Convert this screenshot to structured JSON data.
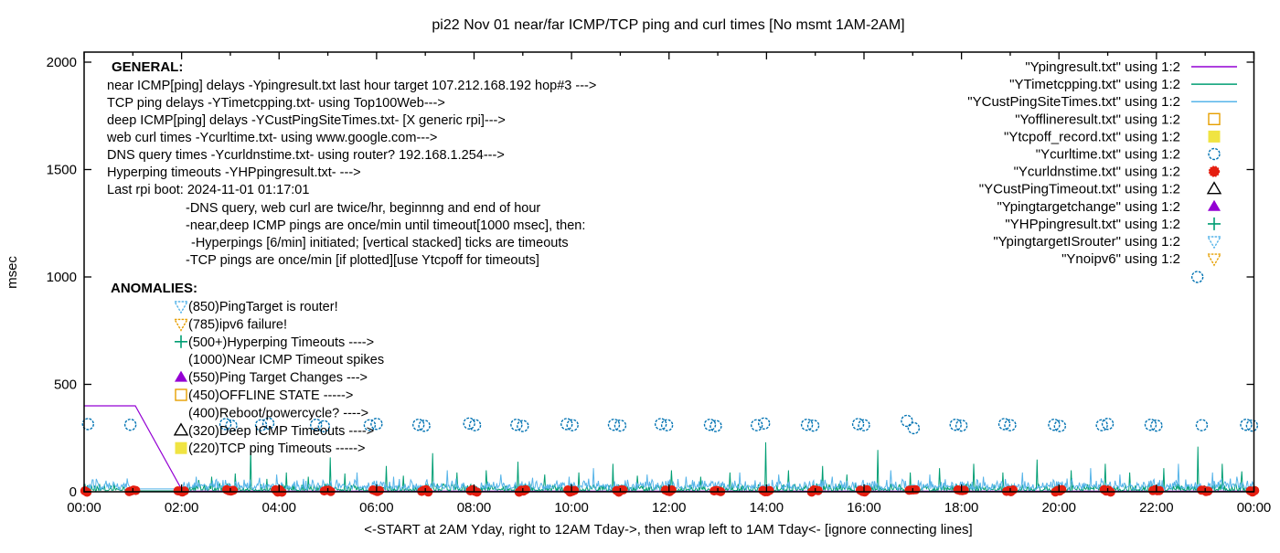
{
  "title": "pi22 Nov 01  near/far ICMP/TCP ping and curl times [No msmt 1AM-2AM]",
  "y_axis": {
    "label": "msec",
    "ticks": [
      0,
      500,
      1000,
      1500,
      2000
    ],
    "range": [
      0,
      2050
    ]
  },
  "x_axis": {
    "label": "<-START at 2AM Yday, right to 12AM Tday->, then wrap left to 1AM Tday<- [ignore connecting lines]",
    "tick_labels": [
      "00:00",
      "02:00",
      "04:00",
      "06:00",
      "08:00",
      "10:00",
      "12:00",
      "14:00",
      "16:00",
      "18:00",
      "20:00",
      "22:00",
      "00:00"
    ],
    "hours_span": 24,
    "major_tick_every_hours": 2,
    "minor_tick_every_hours": 1
  },
  "legend": {
    "items": [
      {
        "label": "\"Ypingresult.txt\" using 1:2",
        "sample": "line",
        "color": "#9400D3"
      },
      {
        "label": "\"YTimetcpping.txt\" using 1:2",
        "sample": "line",
        "color": "#009E73"
      },
      {
        "label": "\"YCustPingSiteTimes.txt\" using 1:2",
        "sample": "line",
        "color": "#56B4E9"
      },
      {
        "label": "\"Yofflineresult.txt\" using 1:2",
        "sample": "square-open",
        "color": "#E69F00"
      },
      {
        "label": "\"Ytcpoff_record.txt\" using 1:2",
        "sample": "square-filled",
        "color": "#F0E442"
      },
      {
        "label": "\"Ycurltime.txt\" using 1:2",
        "sample": "circle-open",
        "color": "#0072B2"
      },
      {
        "label": "\"Ycurldnstime.txt\" using 1:2",
        "sample": "circle-filled",
        "color": "#E51E10"
      },
      {
        "label": "\"YCustPingTimeout.txt\" using 1:2",
        "sample": "triangle-up-open",
        "color": "#000000"
      },
      {
        "label": "\"Ypingtargetchange\" using 1:2",
        "sample": "triangle-up-filled",
        "color": "#9400D3"
      },
      {
        "label": "\"YHPpingresult.txt\" using 1:2",
        "sample": "plus",
        "color": "#009E73"
      },
      {
        "label": "\"YpingtargetISrouter\" using 1:2",
        "sample": "triangle-down-open",
        "color": "#56B4E9"
      },
      {
        "label": "\"Ynoipv6\" using 1:2",
        "sample": "triangle-down-open",
        "color": "#E69F00"
      }
    ]
  },
  "annotations": {
    "general": {
      "heading": "GENERAL:",
      "lines": [
        "near ICMP[ping] delays -Ypingresult.txt last hour target 107.212.168.192 hop#3 --->",
        "TCP ping delays -YTimetcpping.txt- using Top100Web--->",
        "deep ICMP[ping] delays -YCustPingSiteTimes.txt- [X generic rpi]--->",
        "web curl times -Ycurltime.txt- using www.google.com--->",
        "DNS query times -Ycurldnstime.txt- using router? 192.168.1.254--->",
        "Hyperping timeouts -YHPpingresult.txt- --->",
        "Last rpi boot: 2024-11-01 01:17:01"
      ],
      "sub_lines": [
        "-DNS query, web curl are twice/hr, beginnng and end of hour",
        "-near,deep ICMP pings are once/min until timeout[1000 msec], then:",
        " -Hyperpings [6/min] initiated; [vertical stacked] ticks are timeouts",
        "-TCP pings are once/min [if plotted][use Ytcpoff for timeouts]"
      ]
    },
    "anomalies": {
      "heading": "ANOMALIES:",
      "items": [
        {
          "marker": "triangle-down-open",
          "color": "#56B4E9",
          "text": "(850)PingTarget is router!"
        },
        {
          "marker": "triangle-down-open",
          "color": "#E69F00",
          "text": "(785)ipv6 failure!"
        },
        {
          "marker": "plus",
          "color": "#009E73",
          "text": "(500+)Hyperping Timeouts ---->"
        },
        {
          "marker": "none",
          "color": "",
          "text": "(1000)Near ICMP Timeout spikes"
        },
        {
          "marker": "triangle-up-filled",
          "color": "#9400D3",
          "text": "(550)Ping Target Changes --->"
        },
        {
          "marker": "square-open",
          "color": "#E69F00",
          "text": "(450)OFFLINE STATE ----->"
        },
        {
          "marker": "none",
          "color": "",
          "text": "(400)Reboot/powercycle? ---->"
        },
        {
          "marker": "triangle-up-open",
          "color": "#000000",
          "text": "(320)Deep ICMP Timeouts ---->"
        },
        {
          "marker": "square-filled",
          "color": "#F0E442",
          "text": "(220)TCP ping Timeouts ----->"
        }
      ]
    }
  },
  "chart_data": {
    "type": "line",
    "x_unit": "hours_0_to_24",
    "ylabel": "msec",
    "ylim": [
      0,
      2050
    ],
    "grid": false,
    "legend_position": "top-right-inside",
    "series": [
      {
        "name": "Ypingresult.txt",
        "style": "line",
        "color": "#9400D3",
        "points": [
          [
            0,
            400
          ],
          [
            1.05,
            400
          ],
          [
            2.02,
            3
          ],
          [
            24,
            3
          ]
        ]
      },
      {
        "name": "YTimetcpping.txt",
        "style": "noisy-line",
        "color": "#009E73",
        "baseline_msec": 7,
        "noise_amp_msec": 32,
        "quiet_hours": [
          0.95,
          2.02
        ],
        "spikes": [
          [
            2.35,
            55
          ],
          [
            2.62,
            70
          ],
          [
            3.1,
            85
          ],
          [
            3.42,
            205
          ],
          [
            3.75,
            60
          ],
          [
            4.15,
            90
          ],
          [
            4.6,
            70
          ],
          [
            5.05,
            160
          ],
          [
            5.35,
            85
          ],
          [
            6.2,
            120
          ],
          [
            6.55,
            75
          ],
          [
            7.15,
            180
          ],
          [
            7.65,
            90
          ],
          [
            8.25,
            100
          ],
          [
            8.9,
            140
          ],
          [
            9.45,
            80
          ],
          [
            10.15,
            90
          ],
          [
            10.85,
            130
          ],
          [
            11.35,
            75
          ],
          [
            12.05,
            100
          ],
          [
            12.65,
            70
          ],
          [
            13.25,
            90
          ],
          [
            13.98,
            230
          ],
          [
            14.45,
            100
          ],
          [
            15.15,
            120
          ],
          [
            15.65,
            80
          ],
          [
            16.28,
            195
          ],
          [
            16.95,
            90
          ],
          [
            17.55,
            110
          ],
          [
            18.25,
            130
          ],
          [
            18.85,
            90
          ],
          [
            19.55,
            150
          ],
          [
            20.25,
            100
          ],
          [
            20.95,
            130
          ],
          [
            21.45,
            90
          ],
          [
            22.15,
            110
          ],
          [
            22.85,
            210
          ],
          [
            23.35,
            130
          ],
          [
            23.75,
            95
          ]
        ]
      },
      {
        "name": "YCustPingSiteTimes.txt",
        "style": "noisy-line",
        "color": "#56B4E9",
        "baseline_msec": 22,
        "noise_amp_msec": 38,
        "quiet_hours": [
          0.95,
          2.02
        ],
        "spikes": [
          [
            0.25,
            60
          ],
          [
            0.6,
            45
          ],
          [
            2.3,
            70
          ],
          [
            2.9,
            55
          ],
          [
            3.6,
            65
          ],
          [
            3.95,
            80
          ],
          [
            4.5,
            60
          ],
          [
            5.6,
            90
          ],
          [
            6.35,
            70
          ],
          [
            7.45,
            100
          ],
          [
            8.55,
            80
          ],
          [
            9.2,
            65
          ],
          [
            9.95,
            70
          ],
          [
            10.45,
            110
          ],
          [
            11.55,
            80
          ],
          [
            12.35,
            70
          ],
          [
            13.45,
            90
          ],
          [
            14.25,
            80
          ],
          [
            15.35,
            70
          ],
          [
            16.55,
            100
          ],
          [
            17.35,
            80
          ],
          [
            18.45,
            70
          ],
          [
            19.25,
            90
          ],
          [
            20.65,
            110
          ],
          [
            21.25,
            80
          ],
          [
            22.45,
            130
          ],
          [
            23.15,
            90
          ],
          [
            23.65,
            70
          ]
        ]
      },
      {
        "name": "Yofflineresult.txt",
        "style": "points",
        "marker": "square-open",
        "color": "#E69F00",
        "points": []
      },
      {
        "name": "Ytcpoff_record.txt",
        "style": "points",
        "marker": "square-filled",
        "color": "#F0E442",
        "points": []
      },
      {
        "name": "Ycurltime.txt",
        "style": "points",
        "marker": "circle-open",
        "color": "#0072B2",
        "points": [
          [
            0.08,
            315
          ],
          [
            0.95,
            312
          ],
          [
            2.9,
            315
          ],
          [
            3.02,
            308
          ],
          [
            3.63,
            310
          ],
          [
            3.78,
            318
          ],
          [
            4.76,
            312
          ],
          [
            4.92,
            305
          ],
          [
            5.86,
            310
          ],
          [
            6.0,
            316
          ],
          [
            6.86,
            312
          ],
          [
            6.98,
            307
          ],
          [
            7.9,
            318
          ],
          [
            8.02,
            310
          ],
          [
            8.87,
            312
          ],
          [
            9.0,
            306
          ],
          [
            9.9,
            315
          ],
          [
            10.02,
            310
          ],
          [
            10.87,
            312
          ],
          [
            11.0,
            308
          ],
          [
            11.83,
            315
          ],
          [
            11.96,
            310
          ],
          [
            12.84,
            312
          ],
          [
            12.96,
            306
          ],
          [
            13.8,
            310
          ],
          [
            13.95,
            318
          ],
          [
            14.83,
            312
          ],
          [
            14.96,
            308
          ],
          [
            15.88,
            315
          ],
          [
            16.0,
            310
          ],
          [
            16.88,
            330
          ],
          [
            17.02,
            296
          ],
          [
            17.88,
            312
          ],
          [
            18.0,
            308
          ],
          [
            18.88,
            315
          ],
          [
            19.0,
            310
          ],
          [
            19.9,
            312
          ],
          [
            20.02,
            306
          ],
          [
            20.88,
            310
          ],
          [
            21.0,
            316
          ],
          [
            21.88,
            312
          ],
          [
            22.0,
            308
          ],
          [
            22.84,
            1000
          ],
          [
            22.93,
            310
          ],
          [
            23.84,
            312
          ],
          [
            23.96,
            308
          ]
        ]
      },
      {
        "name": "Ycurldnstime.txt",
        "style": "point-clusters",
        "marker": "circle-filled",
        "color": "#E51E10",
        "cluster_hours": [
          0,
          1,
          2,
          3,
          4,
          5,
          6,
          7,
          8,
          9,
          10,
          11,
          12,
          13,
          14,
          15,
          16,
          17,
          18,
          19,
          20,
          21,
          22,
          23,
          24
        ],
        "cluster_offsets_hours": [
          -0.075,
          -0.03,
          0.015,
          0.06
        ],
        "value_msec": 4
      },
      {
        "name": "YCustPingTimeout.txt",
        "style": "points",
        "marker": "triangle-up-open",
        "color": "#000000",
        "points": []
      },
      {
        "name": "Ypingtargetchange",
        "style": "points",
        "marker": "triangle-up-filled",
        "color": "#9400D3",
        "points": []
      },
      {
        "name": "YHPpingresult.txt",
        "style": "points",
        "marker": "plus",
        "color": "#009E73",
        "points": []
      },
      {
        "name": "YpingtargetISrouter",
        "style": "points",
        "marker": "triangle-down-open",
        "color": "#56B4E9",
        "points": []
      },
      {
        "name": "Ynoipv6",
        "style": "points",
        "marker": "triangle-down-open",
        "color": "#E69F00",
        "points": []
      }
    ]
  }
}
